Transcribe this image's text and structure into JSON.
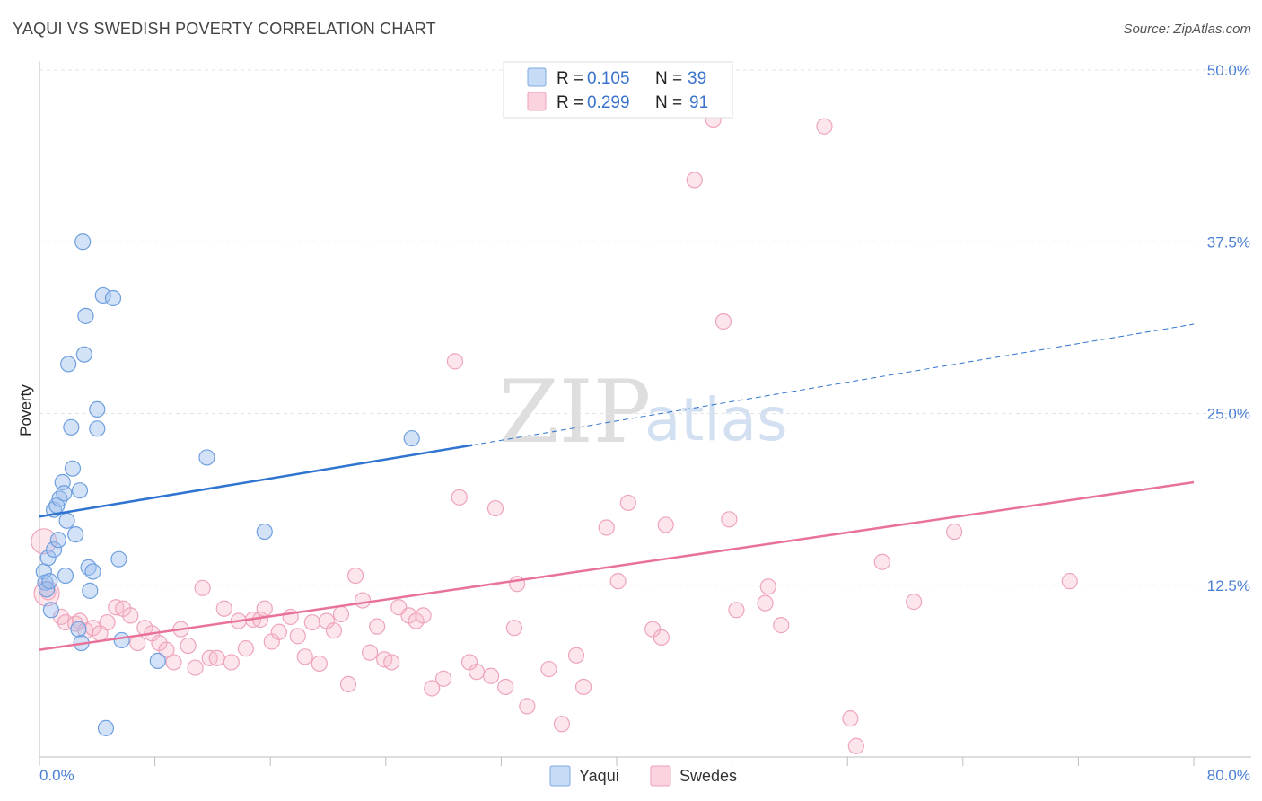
{
  "title": "YAQUI VS SWEDISH POVERTY CORRELATION CHART",
  "source": "Source: ZipAtlas.com",
  "watermark": {
    "zip": "ZIP",
    "atlas": "atlas"
  },
  "legend": {
    "rows": [
      {
        "r_label": "R =",
        "r_value": "0.105",
        "n_label": "N =",
        "n_value": "39"
      },
      {
        "r_label": "R =",
        "r_value": "0.299",
        "n_label": "N =",
        "n_value": "91"
      }
    ]
  },
  "bottom_legend": [
    "Yaqui",
    "Swedes"
  ],
  "chart_data": {
    "type": "scatter",
    "title": "YAQUI VS SWEDISH POVERTY CORRELATION CHART",
    "xlabel": "",
    "ylabel": "Poverty",
    "xlim": [
      0,
      80
    ],
    "ylim": [
      0,
      50
    ],
    "x_tick_labels": [
      "0.0%",
      "80.0%"
    ],
    "y_ticks": [
      12.5,
      25.0,
      37.5,
      50.0
    ],
    "y_tick_labels": [
      "12.5%",
      "25.0%",
      "37.5%",
      "50.0%"
    ],
    "grid": true,
    "legend_position": "top-center",
    "colors": {
      "Yaqui": "#9dbfed",
      "Swedes": "#f5b6c9",
      "Yaqui_line": "#2f74d0",
      "Swedes_line": "#e8729a"
    },
    "series": [
      {
        "name": "Yaqui",
        "r": 0.105,
        "n": 39,
        "trend": {
          "x0": 0,
          "y0": 17.5,
          "x1": 30,
          "y1": 22.7,
          "x_dash_end": 80,
          "y_dash_end": 31.5
        },
        "points": [
          [
            0.3,
            13.5
          ],
          [
            0.4,
            12.7
          ],
          [
            0.5,
            12.2
          ],
          [
            0.6,
            14.5
          ],
          [
            0.7,
            12.8
          ],
          [
            0.8,
            10.7
          ],
          [
            1.0,
            15.1
          ],
          [
            1.0,
            18.0
          ],
          [
            1.2,
            18.3
          ],
          [
            1.3,
            15.8
          ],
          [
            1.4,
            18.8
          ],
          [
            1.6,
            20.0
          ],
          [
            1.7,
            19.2
          ],
          [
            1.8,
            13.2
          ],
          [
            1.9,
            17.2
          ],
          [
            2.0,
            28.6
          ],
          [
            2.2,
            24.0
          ],
          [
            2.3,
            21.0
          ],
          [
            2.5,
            16.2
          ],
          [
            2.7,
            9.3
          ],
          [
            2.8,
            19.4
          ],
          [
            2.9,
            8.3
          ],
          [
            3.0,
            37.5
          ],
          [
            3.1,
            29.3
          ],
          [
            3.2,
            32.1
          ],
          [
            3.4,
            13.8
          ],
          [
            3.5,
            12.1
          ],
          [
            3.7,
            13.5
          ],
          [
            4.0,
            25.3
          ],
          [
            4.0,
            23.9
          ],
          [
            4.4,
            33.6
          ],
          [
            4.6,
            2.1
          ],
          [
            5.1,
            33.4
          ],
          [
            5.5,
            14.4
          ],
          [
            5.7,
            8.5
          ],
          [
            8.2,
            7.0
          ],
          [
            11.6,
            21.8
          ],
          [
            15.6,
            16.4
          ],
          [
            25.8,
            23.2
          ]
        ]
      },
      {
        "name": "Swedes",
        "r": 0.299,
        "n": 91,
        "trend": {
          "x0": 0,
          "y0": 7.8,
          "x1": 80,
          "y1": 20.0
        },
        "points": [
          [
            0.3,
            15.7
          ],
          [
            0.6,
            12.0
          ],
          [
            1.5,
            10.2
          ],
          [
            1.8,
            9.8
          ],
          [
            2.5,
            9.7
          ],
          [
            2.8,
            9.9
          ],
          [
            3.2,
            9.2
          ],
          [
            3.7,
            9.4
          ],
          [
            4.2,
            9.0
          ],
          [
            4.7,
            9.8
          ],
          [
            5.3,
            10.9
          ],
          [
            5.8,
            10.8
          ],
          [
            6.3,
            10.3
          ],
          [
            6.8,
            8.3
          ],
          [
            7.3,
            9.4
          ],
          [
            7.8,
            9.0
          ],
          [
            8.3,
            8.3
          ],
          [
            8.8,
            7.8
          ],
          [
            9.3,
            6.9
          ],
          [
            9.8,
            9.3
          ],
          [
            10.3,
            8.1
          ],
          [
            10.8,
            6.5
          ],
          [
            11.3,
            12.3
          ],
          [
            11.8,
            7.2
          ],
          [
            12.3,
            7.2
          ],
          [
            12.8,
            10.8
          ],
          [
            13.3,
            6.9
          ],
          [
            13.8,
            9.9
          ],
          [
            14.3,
            7.9
          ],
          [
            14.8,
            10.0
          ],
          [
            15.3,
            10.0
          ],
          [
            15.6,
            10.8
          ],
          [
            16.1,
            8.4
          ],
          [
            16.6,
            9.1
          ],
          [
            17.4,
            10.2
          ],
          [
            17.9,
            8.8
          ],
          [
            18.4,
            7.3
          ],
          [
            18.9,
            9.8
          ],
          [
            19.4,
            6.8
          ],
          [
            19.9,
            9.9
          ],
          [
            20.4,
            9.2
          ],
          [
            20.9,
            10.4
          ],
          [
            21.4,
            5.3
          ],
          [
            21.9,
            13.2
          ],
          [
            22.4,
            11.4
          ],
          [
            22.9,
            7.6
          ],
          [
            23.4,
            9.5
          ],
          [
            23.9,
            7.1
          ],
          [
            24.4,
            6.9
          ],
          [
            24.9,
            10.9
          ],
          [
            25.6,
            10.3
          ],
          [
            26.1,
            9.9
          ],
          [
            26.6,
            10.3
          ],
          [
            27.2,
            5.0
          ],
          [
            28.0,
            5.7
          ],
          [
            28.8,
            28.8
          ],
          [
            29.1,
            18.9
          ],
          [
            29.8,
            6.9
          ],
          [
            30.3,
            6.2
          ],
          [
            31.3,
            5.9
          ],
          [
            31.6,
            18.1
          ],
          [
            32.3,
            5.1
          ],
          [
            32.9,
            9.4
          ],
          [
            33.1,
            12.6
          ],
          [
            33.8,
            3.7
          ],
          [
            35.3,
            6.4
          ],
          [
            36.2,
            2.4
          ],
          [
            37.2,
            7.4
          ],
          [
            37.7,
            5.1
          ],
          [
            39.3,
            16.7
          ],
          [
            40.1,
            12.8
          ],
          [
            40.8,
            18.5
          ],
          [
            42.5,
            9.3
          ],
          [
            43.1,
            8.7
          ],
          [
            43.4,
            16.9
          ],
          [
            45.4,
            42.0
          ],
          [
            46.7,
            46.4
          ],
          [
            47.4,
            31.7
          ],
          [
            47.8,
            17.3
          ],
          [
            48.3,
            10.7
          ],
          [
            50.3,
            11.2
          ],
          [
            50.5,
            12.4
          ],
          [
            51.4,
            9.6
          ],
          [
            54.4,
            45.9
          ],
          [
            56.2,
            2.8
          ],
          [
            56.6,
            0.8
          ],
          [
            58.4,
            14.2
          ],
          [
            60.6,
            11.3
          ],
          [
            63.4,
            16.4
          ],
          [
            71.4,
            12.8
          ],
          [
            0.5,
            11.9
          ]
        ]
      }
    ]
  }
}
